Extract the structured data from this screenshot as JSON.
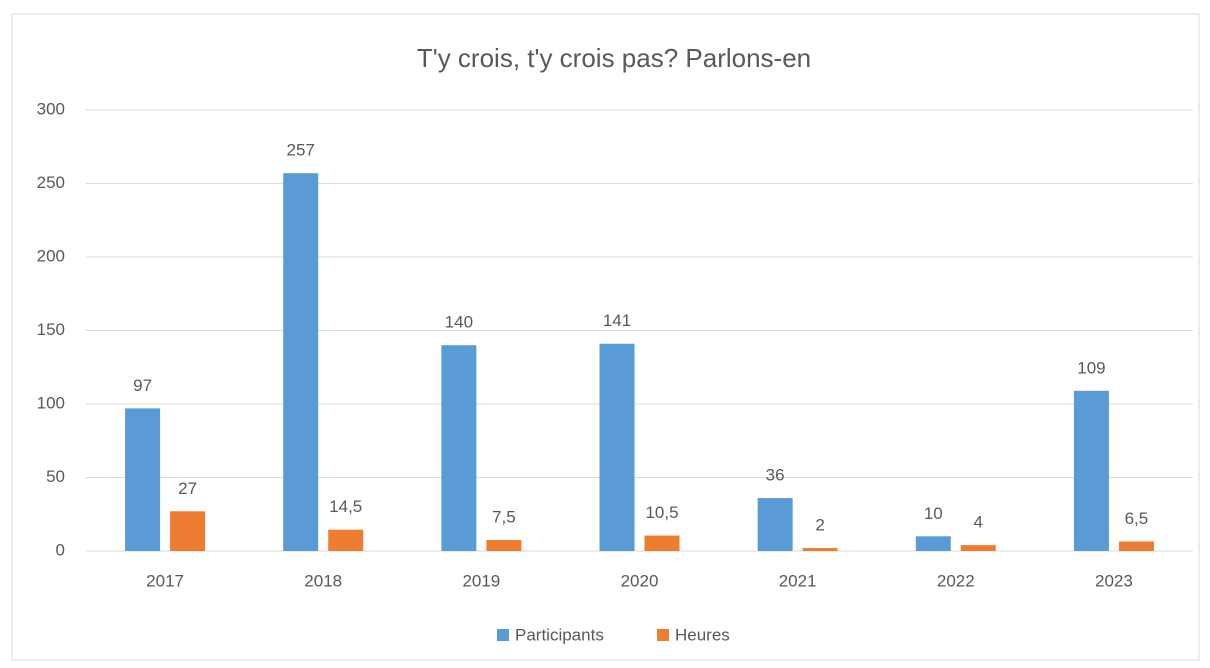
{
  "chart_data": {
    "type": "bar",
    "title": "T'y crois, t'y crois pas? Parlons-en",
    "categories": [
      "2017",
      "2018",
      "2019",
      "2020",
      "2021",
      "2022",
      "2023"
    ],
    "series": [
      {
        "name": "Participants",
        "color": "#5b9bd5",
        "values": [
          97,
          257,
          140,
          141,
          36,
          10,
          109
        ]
      },
      {
        "name": "Heures",
        "color": "#ed7d31",
        "values": [
          27,
          14.5,
          7.5,
          10.5,
          2,
          4,
          6.5
        ],
        "value_labels": [
          "27",
          "14,5",
          "7,5",
          "10,5",
          "2",
          "4",
          "6,5"
        ]
      }
    ],
    "ylim": [
      0,
      300
    ],
    "yticks": [
      0,
      50,
      100,
      150,
      200,
      250,
      300
    ],
    "grid": true,
    "legend": "bottom"
  }
}
